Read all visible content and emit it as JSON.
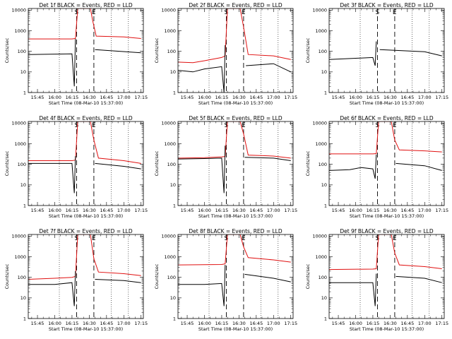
{
  "chart_data": [
    {
      "type": "line",
      "title": "Det 1f BLACK = Events, RED = LLD",
      "ylabel": "Counts/sec",
      "xlabel": "Start Time (08-Mar-10 15:37:00)",
      "x_ticks": [
        "15:45",
        "16:00",
        "16:15",
        "16:30",
        "16:45",
        "17:00",
        "17:15"
      ],
      "y_ticks": [
        "1",
        "10",
        "100",
        "1000",
        "10000"
      ],
      "yscale": "log",
      "xlim": [
        "15:37:00",
        "17:17:00"
      ],
      "ylim": [
        1,
        12000
      ],
      "markers": [
        {
          "label": "S",
          "time": "16:19"
        },
        {
          "label": "E",
          "time": "16:34"
        }
      ],
      "vlines_dotted": [
        "16:04",
        "16:49",
        "17:04"
      ],
      "series": [
        {
          "name": "LLD",
          "color": "#e01010",
          "x": [
            "15:37",
            "16:15",
            "16:18",
            "16:20",
            "16:31",
            "16:33",
            "16:36",
            "17:00",
            "17:15"
          ],
          "y": [
            400,
            400,
            420,
            12000,
            12000,
            3000,
            550,
            500,
            420
          ]
        },
        {
          "name": "Events",
          "color": "#000000",
          "x": [
            "15:37",
            "16:15",
            "16:17",
            "16:18",
            "16:19",
            "16:34",
            "16:35",
            "17:15"
          ],
          "y": [
            70,
            75,
            2,
            400,
            null,
            null,
            120,
            85
          ]
        }
      ]
    },
    {
      "type": "line",
      "title": "Det 2f BLACK = Events, RED = LLD",
      "ylabel": "Counts/sec",
      "xlabel": "Start Time (08-Mar-10 15:37:00)",
      "x_ticks": [
        "15:45",
        "16:00",
        "16:15",
        "16:30",
        "16:45",
        "17:00",
        "17:15"
      ],
      "y_ticks": [
        "1",
        "10",
        "100",
        "1000",
        "10000"
      ],
      "yscale": "log",
      "xlim": [
        "15:37:00",
        "17:17:00"
      ],
      "ylim": [
        1,
        12000
      ],
      "markers": [
        {
          "label": "S",
          "time": "16:19"
        },
        {
          "label": "E",
          "time": "16:34"
        }
      ],
      "vlines_dotted": [
        "16:04",
        "16:49",
        "17:04"
      ],
      "series": [
        {
          "name": "LLD",
          "color": "#e01010",
          "x": [
            "15:37",
            "15:50",
            "16:00",
            "16:15",
            "16:18",
            "16:20",
            "16:31",
            "16:34",
            "16:38",
            "17:00",
            "17:15"
          ],
          "y": [
            30,
            28,
            35,
            50,
            60,
            12000,
            12000,
            1500,
            70,
            60,
            40
          ]
        },
        {
          "name": "Events",
          "color": "#000000",
          "x": [
            "15:37",
            "15:50",
            "16:00",
            "16:15",
            "16:17",
            "16:18",
            "16:19",
            "16:34",
            "16:36",
            "17:00",
            "17:15"
          ],
          "y": [
            12,
            10,
            14,
            18,
            1,
            200,
            null,
            null,
            20,
            25,
            10
          ]
        }
      ]
    },
    {
      "type": "line",
      "title": "Det 3f BLACK = Events, RED = LLD",
      "ylabel": "Counts/sec",
      "xlabel": "Start Time (08-Mar-10 15:37:00)",
      "x_ticks": [
        "15:45",
        "16:00",
        "16:15",
        "16:30",
        "16:45",
        "17:00",
        "17:15"
      ],
      "y_ticks": [
        "1",
        "10",
        "100",
        "1000",
        "10000"
      ],
      "yscale": "log",
      "xlim": [
        "15:37:00",
        "17:17:00"
      ],
      "ylim": [
        1,
        12000
      ],
      "markers": [
        {
          "label": "S",
          "time": "16:19"
        },
        {
          "label": "E",
          "time": "16:34"
        }
      ],
      "vlines_dotted": [
        "16:04",
        "16:49",
        "17:04"
      ],
      "series": [
        {
          "name": "Events",
          "color": "#000000",
          "x": [
            "15:37",
            "16:15",
            "16:17",
            "16:18",
            "16:19",
            "16:20",
            "16:21",
            "17:00",
            "17:15"
          ],
          "y": [
            40,
            50,
            20,
            300,
            null,
            null,
            120,
            95,
            60
          ]
        }
      ]
    },
    {
      "type": "line",
      "title": "Det 4f BLACK = Events, RED = LLD",
      "ylabel": "Counts/sec",
      "xlabel": "Start Time (08-Mar-10 15:37:00)",
      "x_ticks": [
        "15:45",
        "16:00",
        "16:15",
        "16:30",
        "16:45",
        "17:00",
        "17:15"
      ],
      "y_ticks": [
        "1",
        "10",
        "100",
        "1000",
        "10000"
      ],
      "yscale": "log",
      "xlim": [
        "15:37:00",
        "17:17:00"
      ],
      "ylim": [
        1,
        12000
      ],
      "markers": [
        {
          "label": "S",
          "time": "16:19"
        },
        {
          "label": "E",
          "time": "16:34"
        }
      ],
      "vlines_dotted": [
        "16:04",
        "16:49",
        "17:04"
      ],
      "series": [
        {
          "name": "LLD",
          "color": "#e01010",
          "x": [
            "15:37",
            "16:15",
            "16:18",
            "16:20",
            "16:31",
            "16:34",
            "16:38",
            "17:00",
            "17:15"
          ],
          "y": [
            150,
            150,
            160,
            12000,
            12000,
            1500,
            200,
            150,
            110
          ]
        },
        {
          "name": "Events",
          "color": "#000000",
          "x": [
            "15:37",
            "16:15",
            "16:17",
            "16:18",
            "16:19",
            "16:34",
            "16:35",
            "17:00",
            "17:15"
          ],
          "y": [
            110,
            110,
            4,
            250,
            null,
            null,
            110,
            80,
            60
          ]
        }
      ]
    },
    {
      "type": "line",
      "title": "Det 5f BLACK = Events, RED = LLD",
      "ylabel": "Counts/sec",
      "xlabel": "Start Time (08-Mar-10 15:37:00)",
      "x_ticks": [
        "15:45",
        "16:00",
        "16:15",
        "16:30",
        "16:45",
        "17:00",
        "17:15"
      ],
      "y_ticks": [
        "1",
        "10",
        "100",
        "1000",
        "10000"
      ],
      "yscale": "log",
      "xlim": [
        "15:37:00",
        "17:17:00"
      ],
      "ylim": [
        1,
        12000
      ],
      "markers": [
        {
          "label": "S",
          "time": "16:19"
        },
        {
          "label": "E",
          "time": "16:34"
        }
      ],
      "vlines_dotted": [
        "16:04",
        "16:49",
        "17:04"
      ],
      "series": [
        {
          "name": "LLD",
          "color": "#e01010",
          "x": [
            "15:37",
            "16:00",
            "16:15",
            "16:18",
            "16:20",
            "16:31",
            "16:34",
            "16:38",
            "17:00",
            "17:15"
          ],
          "y": [
            200,
            210,
            230,
            240,
            12000,
            12000,
            3000,
            280,
            250,
            200
          ]
        },
        {
          "name": "Events",
          "color": "#000000",
          "x": [
            "15:37",
            "16:00",
            "16:15",
            "16:17",
            "16:18",
            "16:19",
            "16:34",
            "16:35",
            "17:00",
            "17:15"
          ],
          "y": [
            180,
            190,
            200,
            4,
            800,
            null,
            null,
            220,
            200,
            150
          ]
        }
      ]
    },
    {
      "type": "line",
      "title": "Det 6f BLACK = Events, RED = LLD",
      "ylabel": "Counts/sec",
      "xlabel": "Start Time (08-Mar-10 15:37:00)",
      "x_ticks": [
        "15:45",
        "16:00",
        "16:15",
        "16:30",
        "16:45",
        "17:00",
        "17:15"
      ],
      "y_ticks": [
        "1",
        "10",
        "100",
        "1000",
        "10000"
      ],
      "yscale": "log",
      "xlim": [
        "15:37:00",
        "17:17:00"
      ],
      "ylim": [
        1,
        12000
      ],
      "markers": [
        {
          "label": "S",
          "time": "16:19"
        },
        {
          "label": "E",
          "time": "16:34"
        }
      ],
      "vlines_dotted": [
        "16:04",
        "16:49",
        "17:04"
      ],
      "series": [
        {
          "name": "LLD",
          "color": "#e01010",
          "x": [
            "15:37",
            "16:15",
            "16:18",
            "16:20",
            "16:31",
            "16:34",
            "16:38",
            "17:00",
            "17:15"
          ],
          "y": [
            320,
            320,
            330,
            12000,
            12000,
            1500,
            500,
            450,
            400
          ]
        },
        {
          "name": "Events",
          "color": "#000000",
          "x": [
            "15:37",
            "15:55",
            "16:05",
            "16:15",
            "16:17",
            "16:18",
            "16:19",
            "16:34",
            "16:35",
            "17:00",
            "17:15"
          ],
          "y": [
            50,
            55,
            70,
            60,
            20,
            300,
            null,
            null,
            110,
            85,
            50
          ]
        }
      ]
    },
    {
      "type": "line",
      "title": "Det 7f BLACK = Events, RED = LLD",
      "ylabel": "Counts/sec",
      "xlabel": "Start Time (08-Mar-10 15:37:00)",
      "x_ticks": [
        "15:45",
        "16:00",
        "16:15",
        "16:30",
        "16:45",
        "17:00",
        "17:15"
      ],
      "y_ticks": [
        "1",
        "10",
        "100",
        "1000",
        "10000"
      ],
      "yscale": "log",
      "xlim": [
        "15:37:00",
        "17:17:00"
      ],
      "ylim": [
        1,
        12000
      ],
      "markers": [
        {
          "label": "S",
          "time": "16:19"
        },
        {
          "label": "E",
          "time": "16:34"
        }
      ],
      "vlines_dotted": [
        "16:04",
        "16:49",
        "17:04"
      ],
      "series": [
        {
          "name": "LLD",
          "color": "#e01010",
          "x": [
            "15:37",
            "16:00",
            "16:15",
            "16:18",
            "16:20",
            "16:31",
            "16:34",
            "16:38",
            "17:00",
            "17:15"
          ],
          "y": [
            80,
            90,
            100,
            110,
            12000,
            12000,
            800,
            180,
            150,
            120
          ]
        },
        {
          "name": "Events",
          "color": "#000000",
          "x": [
            "15:37",
            "16:00",
            "16:15",
            "16:17",
            "16:18",
            "16:19",
            "16:34",
            "16:35",
            "17:00",
            "17:15"
          ],
          "y": [
            45,
            45,
            55,
            4,
            200,
            null,
            null,
            80,
            70,
            55
          ]
        }
      ]
    },
    {
      "type": "line",
      "title": "Det 8f BLACK = Events, RED = LLD",
      "ylabel": "Counts/sec",
      "xlabel": "Start Time (08-Mar-10 15:37:00)",
      "x_ticks": [
        "15:45",
        "16:00",
        "16:15",
        "16:30",
        "16:45",
        "17:00",
        "17:15"
      ],
      "y_ticks": [
        "1",
        "10",
        "100",
        "1000",
        "10000"
      ],
      "yscale": "log",
      "xlim": [
        "15:37:00",
        "17:17:00"
      ],
      "ylim": [
        1,
        12000
      ],
      "markers": [
        {
          "label": "S",
          "time": "16:19"
        },
        {
          "label": "E",
          "time": "16:34"
        }
      ],
      "vlines_dotted": [
        "16:04",
        "16:49",
        "17:04"
      ],
      "series": [
        {
          "name": "LLD",
          "color": "#e01010",
          "x": [
            "15:37",
            "16:15",
            "16:18",
            "16:20",
            "16:31",
            "16:34",
            "16:38",
            "17:00",
            "17:15"
          ],
          "y": [
            400,
            420,
            450,
            12000,
            12000,
            3000,
            900,
            700,
            550
          ]
        },
        {
          "name": "Events",
          "color": "#000000",
          "x": [
            "15:37",
            "16:00",
            "16:15",
            "16:17",
            "16:18",
            "16:19",
            "16:34",
            "16:35",
            "17:00",
            "17:15"
          ],
          "y": [
            45,
            45,
            50,
            4,
            400,
            null,
            null,
            140,
            90,
            60
          ]
        }
      ]
    },
    {
      "type": "line",
      "title": "Det 9f BLACK = Events, RED = LLD",
      "ylabel": "Counts/sec",
      "xlabel": "Start Time (08-Mar-10 15:37:00)",
      "x_ticks": [
        "15:45",
        "16:00",
        "16:15",
        "16:30",
        "16:45",
        "17:00",
        "17:15"
      ],
      "y_ticks": [
        "1",
        "10",
        "100",
        "1000",
        "10000"
      ],
      "yscale": "log",
      "xlim": [
        "15:37:00",
        "17:17:00"
      ],
      "ylim": [
        1,
        12000
      ],
      "markers": [
        {
          "label": "S",
          "time": "16:19"
        },
        {
          "label": "E",
          "time": "16:34"
        }
      ],
      "vlines_dotted": [
        "16:04",
        "16:49",
        "17:04"
      ],
      "series": [
        {
          "name": "LLD",
          "color": "#e01010",
          "x": [
            "15:37",
            "16:15",
            "16:18",
            "16:20",
            "16:31",
            "16:34",
            "16:38",
            "17:00",
            "17:15"
          ],
          "y": [
            240,
            250,
            260,
            12000,
            12000,
            1500,
            400,
            330,
            260
          ]
        },
        {
          "name": "Events",
          "color": "#000000",
          "x": [
            "15:37",
            "16:00",
            "16:15",
            "16:17",
            "16:18",
            "16:19",
            "16:34",
            "16:35",
            "17:00",
            "17:15"
          ],
          "y": [
            55,
            55,
            55,
            4,
            150,
            null,
            null,
            110,
            90,
            55
          ]
        }
      ]
    }
  ]
}
